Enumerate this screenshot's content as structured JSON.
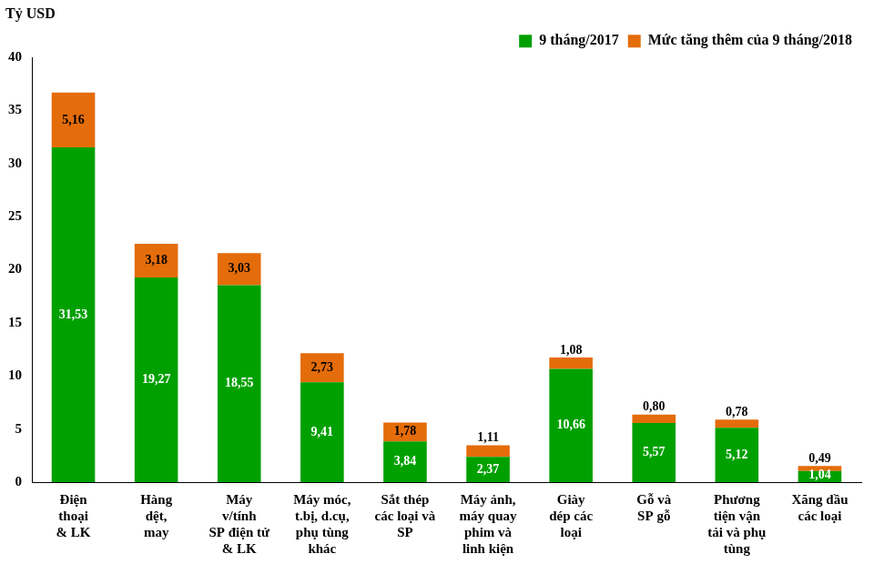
{
  "chart_data": {
    "type": "bar",
    "stacked": true,
    "ylabel": "Tỷ USD",
    "categories": [
      "Điện\nthoại\n& LK",
      "Hàng\ndệt,\nmay",
      "Máy\nv/tính\nSP điện tử\n& LK",
      "Máy móc,\nt.bị, d.cụ,\nphụ tùng\nkhác",
      "Sắt thép\ncác loại và\nSP",
      "Máy ảnh,\nmáy quay\nphim và\nlinh kiện",
      "Giày\ndép các\nloại",
      "Gỗ và\nSP gỗ",
      "Phương\ntiện vận\ntải và phụ\ntùng",
      "Xăng dầu\ncác loại"
    ],
    "series": [
      {
        "name": "9 tháng/2017",
        "color": "#00a000",
        "values": [
          31.53,
          19.27,
          18.55,
          9.41,
          3.84,
          2.37,
          10.66,
          5.57,
          5.12,
          1.04
        ],
        "value_labels": [
          "31,53",
          "19,27",
          "18,55",
          "9,41",
          "3,84",
          "2,37",
          "10,66",
          "5,57",
          "5,12",
          "1,04"
        ]
      },
      {
        "name": "Mức tăng thêm của 9 tháng/2018",
        "color": "#e46c0a",
        "values": [
          5.16,
          3.18,
          3.03,
          2.73,
          1.78,
          1.11,
          1.08,
          0.8,
          0.78,
          0.49
        ],
        "value_labels": [
          "5,16",
          "3,18",
          "3,03",
          "2,73",
          "1,78",
          "1,11",
          "1,08",
          "0,80",
          "0,78",
          "0,49"
        ]
      }
    ],
    "ylim": [
      0,
      40
    ],
    "yticks": [
      0,
      5,
      10,
      15,
      20,
      25,
      30,
      35,
      40
    ],
    "grid": false,
    "legend": "top-right",
    "data_labels": true
  }
}
